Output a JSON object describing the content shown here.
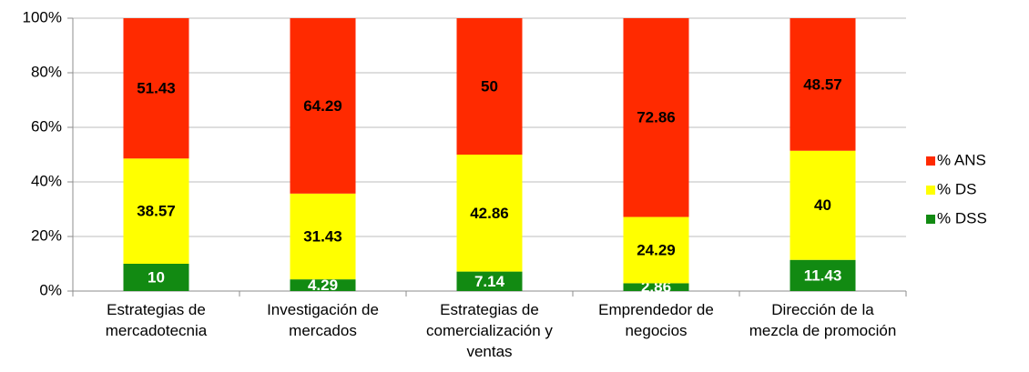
{
  "chart_data": {
    "type": "stacked_bar",
    "categories": [
      "Estrategias de mercadotecnia",
      "Investigación de mercados",
      "Estrategias de comercialización y ventas",
      "Emprendedor de negocios",
      "Dirección de la mezcla de promoción"
    ],
    "series": [
      {
        "name": "% DSS",
        "color": "#128a12",
        "label_color": "#ffffff",
        "values": [
          10,
          4.29,
          7.14,
          2.86,
          11.43
        ]
      },
      {
        "name": "% DS",
        "color": "#ffff00",
        "label_color": "#000000",
        "values": [
          38.57,
          31.43,
          42.86,
          24.29,
          40
        ]
      },
      {
        "name": "% ANS",
        "color": "#ff2a00",
        "label_color": "#000000",
        "values": [
          51.43,
          64.29,
          50,
          72.86,
          48.57
        ]
      }
    ],
    "ylim": [
      0,
      100
    ],
    "yticks": [
      {
        "value": 0,
        "label": "0%"
      },
      {
        "value": 20,
        "label": "20%"
      },
      {
        "value": 40,
        "label": "40%"
      },
      {
        "value": 60,
        "label": "60%"
      },
      {
        "value": 80,
        "label": "80%"
      },
      {
        "value": 100,
        "label": "100%"
      }
    ],
    "grid": true,
    "legend": "right"
  }
}
